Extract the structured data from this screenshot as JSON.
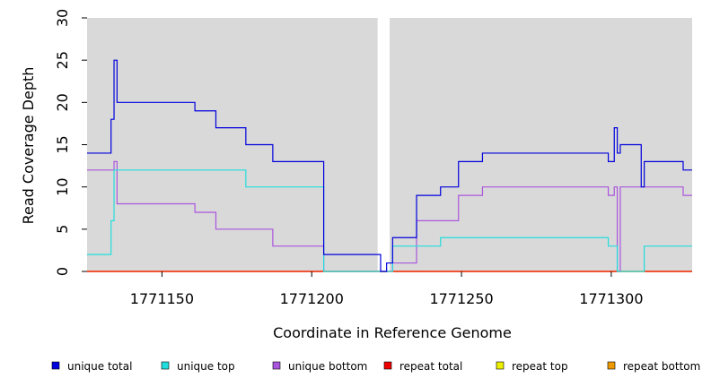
{
  "chart_data": {
    "type": "line",
    "xlabel": "Coordinate in Reference Genome",
    "ylabel": "Read Coverage Depth",
    "xlim": [
      1771125,
      1771327
    ],
    "ylim": [
      0,
      30
    ],
    "x_ticks": [
      1771150,
      1771200,
      1771250,
      1771300
    ],
    "y_ticks": [
      0,
      5,
      10,
      15,
      20,
      25,
      30
    ],
    "shaded_regions": [
      [
        1771125,
        1771222
      ],
      [
        1771226,
        1771327
      ]
    ],
    "grid": false,
    "legend_placement": "bottom",
    "series": [
      {
        "name": "unique total",
        "color": "#0000dd",
        "step": true,
        "points": [
          [
            1771125,
            14
          ],
          [
            1771133,
            18
          ],
          [
            1771134,
            25
          ],
          [
            1771135,
            20
          ],
          [
            1771161,
            19
          ],
          [
            1771168,
            17
          ],
          [
            1771178,
            15
          ],
          [
            1771187,
            13
          ],
          [
            1771204,
            2
          ],
          [
            1771223,
            0
          ],
          [
            1771225,
            1
          ],
          [
            1771227,
            4
          ],
          [
            1771235,
            9
          ],
          [
            1771243,
            10
          ],
          [
            1771249,
            13
          ],
          [
            1771257,
            14
          ],
          [
            1771299,
            13
          ],
          [
            1771301,
            17
          ],
          [
            1771302,
            14
          ],
          [
            1771303,
            15
          ],
          [
            1771310,
            10
          ],
          [
            1771311,
            13
          ],
          [
            1771324,
            12
          ],
          [
            1771327,
            12
          ]
        ]
      },
      {
        "name": "unique top",
        "color": "#22dddd",
        "step": true,
        "points": [
          [
            1771125,
            2
          ],
          [
            1771133,
            6
          ],
          [
            1771134,
            12
          ],
          [
            1771178,
            10
          ],
          [
            1771204,
            0
          ],
          [
            1771227,
            3
          ],
          [
            1771243,
            4
          ],
          [
            1771299,
            3
          ],
          [
            1771302,
            0
          ],
          [
            1771311,
            3
          ],
          [
            1771327,
            3
          ]
        ]
      },
      {
        "name": "unique bottom",
        "color": "#aa55dd",
        "step": true,
        "points": [
          [
            1771125,
            12
          ],
          [
            1771134,
            13
          ],
          [
            1771135,
            8
          ],
          [
            1771161,
            7
          ],
          [
            1771168,
            5
          ],
          [
            1771187,
            3
          ],
          [
            1771204,
            0
          ],
          [
            1771227,
            1
          ],
          [
            1771235,
            6
          ],
          [
            1771249,
            9
          ],
          [
            1771257,
            10
          ],
          [
            1771299,
            9
          ],
          [
            1771301,
            10
          ],
          [
            1771302,
            0
          ],
          [
            1771303,
            10
          ],
          [
            1771324,
            9
          ],
          [
            1771327,
            9
          ]
        ]
      },
      {
        "name": "repeat total",
        "color": "#ee0000",
        "step": true,
        "points": [
          [
            1771125,
            0
          ],
          [
            1771327,
            0
          ]
        ]
      },
      {
        "name": "repeat top",
        "color": "#eeee00",
        "step": true,
        "points": [
          [
            1771125,
            0
          ],
          [
            1771327,
            0
          ]
        ]
      },
      {
        "name": "repeat bottom",
        "color": "#ee9900",
        "step": true,
        "points": [
          [
            1771125,
            0
          ],
          [
            1771327,
            0
          ]
        ]
      }
    ]
  }
}
